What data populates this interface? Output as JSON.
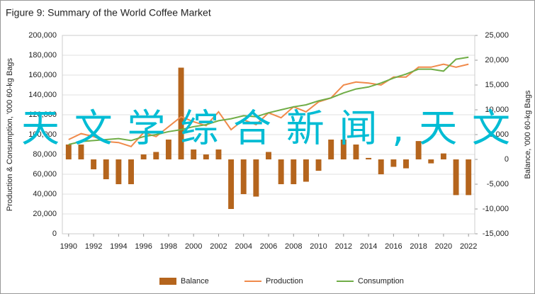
{
  "chart_data": {
    "type": "bar-line",
    "title": "Figure 9: Summary of the World Coffee Market",
    "ylabel": "Production & Consumption, '000 60-kg Bags",
    "y2label": "Balance, '000 60-kg Bags",
    "annotation": "天文学综合新闻,天文",
    "x": [
      1990,
      1991,
      1992,
      1993,
      1994,
      1995,
      1996,
      1997,
      1998,
      1999,
      2000,
      2001,
      2002,
      2003,
      2004,
      2005,
      2006,
      2007,
      2008,
      2009,
      2010,
      2011,
      2012,
      2013,
      2014,
      2015,
      2016,
      2017,
      2018,
      2019,
      2020,
      2021,
      2022
    ],
    "xlim": [
      1990,
      2022
    ],
    "xticks": [
      1990,
      1992,
      1994,
      1996,
      1998,
      2000,
      2002,
      2004,
      2006,
      2008,
      2010,
      2012,
      2014,
      2016,
      2018,
      2020,
      2022
    ],
    "series": [
      {
        "name": "Balance",
        "type": "bar",
        "axis": "y2",
        "color": "#b5651d",
        "values": [
          3000,
          3000,
          -2000,
          -4000,
          -5000,
          -5000,
          1000,
          1500,
          4000,
          18500,
          2000,
          1000,
          2000,
          -10000,
          -7000,
          -7500,
          1500,
          -5000,
          -5000,
          -4500,
          -2300,
          4000,
          4000,
          3000,
          300,
          -3000,
          -1500,
          -1800,
          3700,
          -800,
          1200,
          -7200,
          -7200
        ]
      },
      {
        "name": "Production",
        "type": "line",
        "color": "#f08a4b",
        "values": [
          95000,
          101000,
          98000,
          93000,
          92000,
          88000,
          102000,
          98000,
          108000,
          118000,
          113000,
          109000,
          123000,
          105000,
          115000,
          110000,
          122000,
          117000,
          128000,
          123000,
          133000,
          137000,
          150000,
          153000,
          152000,
          150000,
          158000,
          158000,
          168000,
          168000,
          171000,
          168000,
          171000
        ]
      },
      {
        "name": "Consumption",
        "type": "line",
        "color": "#70ad47",
        "values": [
          90000,
          93000,
          94000,
          95000,
          96000,
          94000,
          98000,
          100000,
          103000,
          105000,
          108000,
          110000,
          114000,
          116000,
          119000,
          118000,
          122000,
          125000,
          128000,
          130000,
          134000,
          137000,
          142000,
          146000,
          148000,
          152000,
          157000,
          161000,
          166000,
          166000,
          164000,
          176000,
          178000
        ]
      }
    ],
    "ylim": [
      0,
      200000
    ],
    "yticks": [
      0,
      {
        "value": 20000,
        "label": "20,000"
      },
      {
        "value": 40000,
        "label": "40,000"
      },
      {
        "value": 60000,
        "label": "60,000"
      },
      {
        "value": 80000,
        "label": "80,000"
      },
      {
        "value": 100000,
        "label": "100,000"
      },
      {
        "value": 120000,
        "label": "120,000"
      },
      {
        "value": 140000,
        "label": "140,000"
      },
      {
        "value": 160000,
        "label": "160,000"
      },
      {
        "value": 180000,
        "label": "180,000"
      },
      {
        "value": 200000,
        "label": "200,000"
      }
    ],
    "y2lim": [
      -15000,
      25000
    ],
    "y2ticks": [
      {
        "value": -15000,
        "label": "-15,000"
      },
      {
        "value": -10000,
        "label": "-10,000"
      },
      {
        "value": -5000,
        "label": "-5,000"
      },
      0,
      {
        "value": 5000,
        "label": "5,000"
      },
      {
        "value": 10000,
        "label": "10,000"
      },
      {
        "value": 15000,
        "label": "15,000"
      },
      {
        "value": 20000,
        "label": "20,000"
      },
      {
        "value": 25000,
        "label": "25,000"
      }
    ],
    "legend": "bottom"
  }
}
